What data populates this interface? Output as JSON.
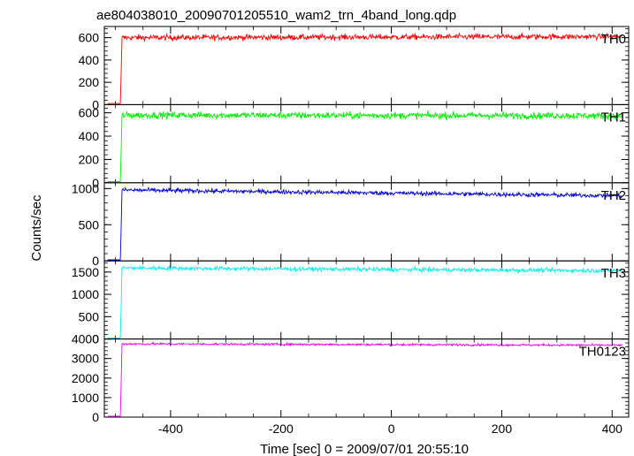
{
  "chart_data": {
    "type": "line",
    "title": "ae804038010_20090701205510_wam2_trn_4band_long.qdp",
    "xlabel": "Time [sec] 0 = 2009/07/01 20:55:10",
    "ylabel": "Counts/sec",
    "xlim": [
      -520,
      430
    ],
    "x_ticks": [
      -400,
      -200,
      0,
      200,
      400
    ],
    "grid": false,
    "panels": [
      {
        "name": "TH0",
        "color": "#ff0000",
        "ylim": [
          0,
          700
        ],
        "y_ticks": [
          0,
          200,
          400,
          600
        ],
        "pre_level": 10,
        "onset_x": -490,
        "level": 600,
        "noise": 25,
        "end_level": 610
      },
      {
        "name": "TH1",
        "color": "#00ee00",
        "ylim": [
          0,
          670
        ],
        "y_ticks": [
          0,
          200,
          400,
          600
        ],
        "pre_level": 10,
        "onset_x": -490,
        "level": 580,
        "noise": 28,
        "end_level": 575
      },
      {
        "name": "TH2",
        "color": "#0000dd",
        "ylim": [
          0,
          1080
        ],
        "y_ticks": [
          0,
          500,
          1000
        ],
        "pre_level": 15,
        "onset_x": -490,
        "level": 980,
        "noise": 30,
        "end_level": 900
      },
      {
        "name": "TH3",
        "color": "#00eeee",
        "ylim": [
          0,
          1750
        ],
        "y_ticks": [
          0,
          500,
          1000,
          1500
        ],
        "pre_level": 20,
        "onset_x": -490,
        "level": 1590,
        "noise": 45,
        "end_level": 1530
      },
      {
        "name": "TH0123",
        "color": "#ee00ee",
        "ylim": [
          0,
          4000
        ],
        "y_ticks": [
          0,
          1000,
          2000,
          3000,
          4000
        ],
        "pre_level": 50,
        "onset_x": -490,
        "level": 3750,
        "noise": 55,
        "end_level": 3680
      }
    ]
  }
}
